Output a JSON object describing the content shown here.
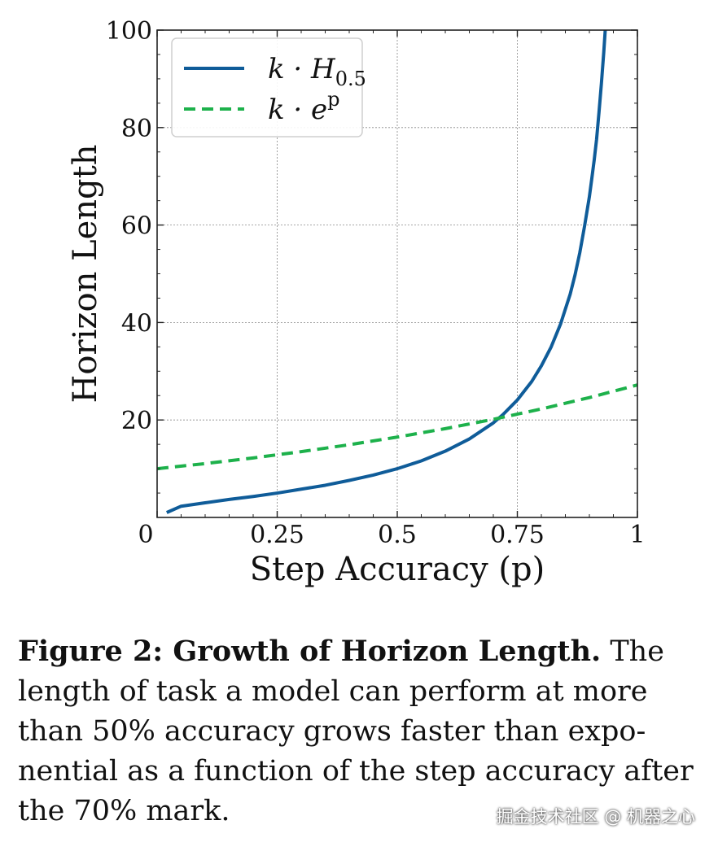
{
  "chart_data": {
    "type": "line",
    "xlabel": "Step Accuracy (p)",
    "ylabel": "Horizon Length",
    "xlim": [
      0,
      1
    ],
    "ylim": [
      0,
      100
    ],
    "xticks": [
      0,
      0.25,
      0.5,
      0.75,
      1
    ],
    "xtick_labels": [
      "0",
      "0.25",
      "0.5",
      "0.75",
      "1"
    ],
    "yticks": [
      20,
      40,
      60,
      80,
      100
    ],
    "ytick_labels": [
      "20",
      "40",
      "60",
      "80",
      "100"
    ],
    "grid": true,
    "legend_position": "top-left",
    "series": [
      {
        "name_main": "k · H",
        "name_sub": "0.5",
        "color": "#0f5c99",
        "style": "solid",
        "x": [
          0.02,
          0.05,
          0.1,
          0.15,
          0.2,
          0.25,
          0.3,
          0.35,
          0.4,
          0.45,
          0.5,
          0.55,
          0.6,
          0.65,
          0.7,
          0.72,
          0.75,
          0.78,
          0.8,
          0.82,
          0.84,
          0.86,
          0.87,
          0.88,
          0.89,
          0.9,
          0.905,
          0.91,
          0.915,
          0.92,
          0.925,
          0.93,
          0.933
        ],
        "y": [
          1.0,
          2.3,
          3.0,
          3.7,
          4.3,
          5.0,
          5.8,
          6.6,
          7.6,
          8.7,
          10.0,
          11.6,
          13.6,
          16.1,
          19.4,
          21.1,
          24.1,
          27.9,
          31.1,
          34.9,
          39.7,
          45.8,
          49.7,
          54.3,
          59.8,
          65.8,
          69.5,
          73.3,
          77.6,
          83.1,
          89.0,
          95.5,
          100
        ]
      },
      {
        "name_main": "k · e",
        "name_sup": "p",
        "color": "#1db14b",
        "style": "dashed",
        "x": [
          0,
          0.1,
          0.2,
          0.3,
          0.4,
          0.5,
          0.6,
          0.7,
          0.8,
          0.9,
          1
        ],
        "y": [
          10.0,
          11.05,
          12.21,
          13.5,
          14.92,
          16.49,
          18.22,
          20.14,
          22.26,
          24.6,
          27.18
        ]
      }
    ]
  },
  "caption": {
    "bold": "Figure 2: Growth of Horizon Length.",
    "text": " The length of task a model can perform at more than 50% accuracy grows faster than expo-nential as a function of the step accuracy after the 70% mark."
  },
  "watermark": "掘金技术社区 @ 机器之心"
}
